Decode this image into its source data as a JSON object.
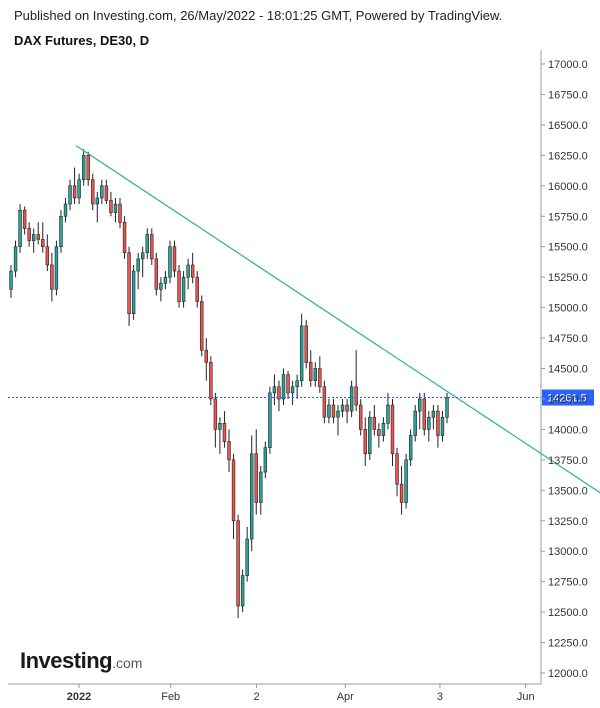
{
  "header": {
    "published": "Published on Investing.com, 26/May/2022 - 18:01:25 GMT, Powered by TradingView."
  },
  "logo": {
    "brand": "Investing",
    "domain": ".com"
  },
  "chart_data": {
    "type": "candlestick",
    "title": "DAX Futures, DE30, D",
    "ylim": [
      12000,
      17000
    ],
    "y_ticks": [
      "17000.0",
      "16750.0",
      "16500.0",
      "16250.0",
      "16000.0",
      "15750.0",
      "15500.0",
      "15250.0",
      "15000.0",
      "14750.0",
      "14500.0",
      "14250.0",
      "14000.0",
      "13750.0",
      "13500.0",
      "13250.0",
      "13000.0",
      "12750.0",
      "12500.0",
      "12250.0",
      "12000.0"
    ],
    "x_ticks": [
      "2022",
      "Feb",
      "2",
      "Apr",
      "3",
      "Jun",
      "J"
    ],
    "current_price": "14261.5",
    "current_price_value": 14261.5,
    "colors": {
      "up": "#26a69a",
      "down": "#ef5350",
      "price_line": "#2962ff",
      "trendline": "#2bb39a"
    },
    "trendline": [
      {
        "date": "2021-12-31",
        "value": 16330
      },
      {
        "date": "2022-07-03",
        "value": 13370
      }
    ],
    "candles": [
      {
        "o": 15150,
        "h": 15350,
        "l": 15080,
        "c": 15300
      },
      {
        "o": 15300,
        "h": 15550,
        "l": 15250,
        "c": 15500
      },
      {
        "o": 15500,
        "h": 15850,
        "l": 15450,
        "c": 15800
      },
      {
        "o": 15800,
        "h": 15830,
        "l": 15600,
        "c": 15650
      },
      {
        "o": 15650,
        "h": 15700,
        "l": 15500,
        "c": 15550
      },
      {
        "o": 15550,
        "h": 15650,
        "l": 15450,
        "c": 15600
      },
      {
        "o": 15600,
        "h": 15700,
        "l": 15520,
        "c": 15560
      },
      {
        "o": 15560,
        "h": 15700,
        "l": 15450,
        "c": 15500
      },
      {
        "o": 15500,
        "h": 15600,
        "l": 15300,
        "c": 15350
      },
      {
        "o": 15350,
        "h": 15450,
        "l": 15050,
        "c": 15150
      },
      {
        "o": 15150,
        "h": 15550,
        "l": 15100,
        "c": 15500
      },
      {
        "o": 15500,
        "h": 15800,
        "l": 15450,
        "c": 15750
      },
      {
        "o": 15750,
        "h": 15900,
        "l": 15700,
        "c": 15850
      },
      {
        "o": 15850,
        "h": 16050,
        "l": 15800,
        "c": 16000
      },
      {
        "o": 16000,
        "h": 16150,
        "l": 15850,
        "c": 15900
      },
      {
        "o": 15900,
        "h": 16100,
        "l": 15850,
        "c": 16050
      },
      {
        "o": 16050,
        "h": 16300,
        "l": 16000,
        "c": 16250
      },
      {
        "o": 16250,
        "h": 16280,
        "l": 16000,
        "c": 16050
      },
      {
        "o": 16050,
        "h": 16100,
        "l": 15800,
        "c": 15850
      },
      {
        "o": 15850,
        "h": 15950,
        "l": 15700,
        "c": 15900
      },
      {
        "o": 15900,
        "h": 16050,
        "l": 15850,
        "c": 16000
      },
      {
        "o": 16000,
        "h": 16050,
        "l": 15850,
        "c": 15880
      },
      {
        "o": 15880,
        "h": 15950,
        "l": 15750,
        "c": 15780
      },
      {
        "o": 15780,
        "h": 15900,
        "l": 15700,
        "c": 15850
      },
      {
        "o": 15850,
        "h": 15900,
        "l": 15650,
        "c": 15700
      },
      {
        "o": 15700,
        "h": 15750,
        "l": 15400,
        "c": 15450
      },
      {
        "o": 15450,
        "h": 15500,
        "l": 14850,
        "c": 14950
      },
      {
        "o": 14950,
        "h": 15350,
        "l": 14900,
        "c": 15300
      },
      {
        "o": 15300,
        "h": 15450,
        "l": 15150,
        "c": 15400
      },
      {
        "o": 15400,
        "h": 15500,
        "l": 15250,
        "c": 15450
      },
      {
        "o": 15450,
        "h": 15650,
        "l": 15400,
        "c": 15600
      },
      {
        "o": 15600,
        "h": 15650,
        "l": 15350,
        "c": 15400
      },
      {
        "o": 15400,
        "h": 15450,
        "l": 15100,
        "c": 15150
      },
      {
        "o": 15150,
        "h": 15250,
        "l": 15050,
        "c": 15200
      },
      {
        "o": 15200,
        "h": 15300,
        "l": 15150,
        "c": 15250
      },
      {
        "o": 15250,
        "h": 15550,
        "l": 15200,
        "c": 15500
      },
      {
        "o": 15500,
        "h": 15550,
        "l": 15250,
        "c": 15300
      },
      {
        "o": 15300,
        "h": 15350,
        "l": 15000,
        "c": 15050
      },
      {
        "o": 15050,
        "h": 15300,
        "l": 15000,
        "c": 15250
      },
      {
        "o": 15250,
        "h": 15400,
        "l": 15150,
        "c": 15350
      },
      {
        "o": 15350,
        "h": 15450,
        "l": 15200,
        "c": 15250
      },
      {
        "o": 15250,
        "h": 15300,
        "l": 15000,
        "c": 15050
      },
      {
        "o": 15050,
        "h": 15100,
        "l": 14600,
        "c": 14650
      },
      {
        "o": 14650,
        "h": 14750,
        "l": 14400,
        "c": 14550
      },
      {
        "o": 14550,
        "h": 14600,
        "l": 14200,
        "c": 14250
      },
      {
        "o": 14250,
        "h": 14300,
        "l": 13850,
        "c": 14000
      },
      {
        "o": 14000,
        "h": 14100,
        "l": 13800,
        "c": 14050
      },
      {
        "o": 14050,
        "h": 14150,
        "l": 13850,
        "c": 13900
      },
      {
        "o": 13900,
        "h": 14000,
        "l": 13650,
        "c": 13750
      },
      {
        "o": 13750,
        "h": 13800,
        "l": 13100,
        "c": 13250
      },
      {
        "o": 13250,
        "h": 13300,
        "l": 12450,
        "c": 12550
      },
      {
        "o": 12550,
        "h": 12850,
        "l": 12500,
        "c": 12800
      },
      {
        "o": 12800,
        "h": 13200,
        "l": 12750,
        "c": 13100
      },
      {
        "o": 13100,
        "h": 13950,
        "l": 13000,
        "c": 13800
      },
      {
        "o": 13800,
        "h": 14000,
        "l": 13300,
        "c": 13400
      },
      {
        "o": 13400,
        "h": 13700,
        "l": 13300,
        "c": 13650
      },
      {
        "o": 13650,
        "h": 13900,
        "l": 13600,
        "c": 13850
      },
      {
        "o": 13850,
        "h": 14350,
        "l": 13800,
        "c": 14300
      },
      {
        "o": 14300,
        "h": 14450,
        "l": 14200,
        "c": 14350
      },
      {
        "o": 14350,
        "h": 14400,
        "l": 14150,
        "c": 14250
      },
      {
        "o": 14250,
        "h": 14500,
        "l": 14200,
        "c": 14450
      },
      {
        "o": 14450,
        "h": 14480,
        "l": 14250,
        "c": 14300
      },
      {
        "o": 14300,
        "h": 14400,
        "l": 14200,
        "c": 14350
      },
      {
        "o": 14350,
        "h": 14450,
        "l": 14250,
        "c": 14400
      },
      {
        "o": 14400,
        "h": 14950,
        "l": 14350,
        "c": 14850
      },
      {
        "o": 14850,
        "h": 14900,
        "l": 14500,
        "c": 14550
      },
      {
        "o": 14550,
        "h": 14650,
        "l": 14350,
        "c": 14400
      },
      {
        "o": 14400,
        "h": 14550,
        "l": 14350,
        "c": 14500
      },
      {
        "o": 14500,
        "h": 14600,
        "l": 14300,
        "c": 14350
      },
      {
        "o": 14350,
        "h": 14400,
        "l": 14050,
        "c": 14100
      },
      {
        "o": 14100,
        "h": 14250,
        "l": 14050,
        "c": 14200
      },
      {
        "o": 14200,
        "h": 14250,
        "l": 14050,
        "c": 14100
      },
      {
        "o": 14100,
        "h": 14200,
        "l": 13950,
        "c": 14150
      },
      {
        "o": 14150,
        "h": 14250,
        "l": 14100,
        "c": 14200
      },
      {
        "o": 14200,
        "h": 14250,
        "l": 14050,
        "c": 14150
      },
      {
        "o": 14150,
        "h": 14400,
        "l": 14100,
        "c": 14350
      },
      {
        "o": 14350,
        "h": 14650,
        "l": 14150,
        "c": 14200
      },
      {
        "o": 14200,
        "h": 14250,
        "l": 13950,
        "c": 14000
      },
      {
        "o": 14000,
        "h": 14100,
        "l": 13700,
        "c": 13800
      },
      {
        "o": 13800,
        "h": 14150,
        "l": 13750,
        "c": 14100
      },
      {
        "o": 14100,
        "h": 14200,
        "l": 13950,
        "c": 14000
      },
      {
        "o": 14000,
        "h": 14050,
        "l": 13850,
        "c": 13950
      },
      {
        "o": 13950,
        "h": 14100,
        "l": 13900,
        "c": 14050
      },
      {
        "o": 14050,
        "h": 14300,
        "l": 14000,
        "c": 14200
      },
      {
        "o": 14200,
        "h": 14250,
        "l": 13700,
        "c": 13800
      },
      {
        "o": 13800,
        "h": 13850,
        "l": 13450,
        "c": 13550
      },
      {
        "o": 13550,
        "h": 13700,
        "l": 13300,
        "c": 13400
      },
      {
        "o": 13400,
        "h": 13800,
        "l": 13350,
        "c": 13750
      },
      {
        "o": 13750,
        "h": 14000,
        "l": 13700,
        "c": 13950
      },
      {
        "o": 13950,
        "h": 14200,
        "l": 13900,
        "c": 14150
      },
      {
        "o": 14150,
        "h": 14300,
        "l": 14000,
        "c": 14250
      },
      {
        "o": 14250,
        "h": 14300,
        "l": 13950,
        "c": 14000
      },
      {
        "o": 14000,
        "h": 14150,
        "l": 13900,
        "c": 14100
      },
      {
        "o": 14100,
        "h": 14200,
        "l": 14000,
        "c": 14150
      },
      {
        "o": 14150,
        "h": 14200,
        "l": 13850,
        "c": 13950
      },
      {
        "o": 13950,
        "h": 14150,
        "l": 13900,
        "c": 14100
      },
      {
        "o": 14100,
        "h": 14300,
        "l": 14050,
        "c": 14261.5
      }
    ]
  }
}
